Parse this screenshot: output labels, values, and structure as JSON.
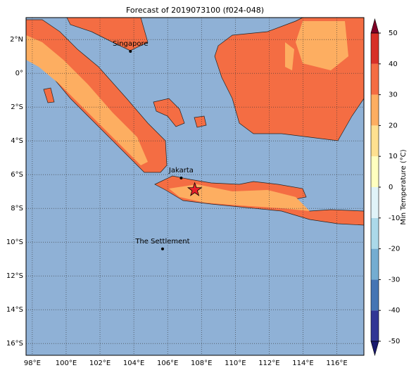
{
  "title": "Forecast of 2019073100 (f024-048)",
  "map": {
    "lonlim": [
      97.63,
      117.6
    ],
    "latlim": [
      -16.7,
      3.3
    ],
    "xticks": [
      {
        "value": 98,
        "label": "98°E"
      },
      {
        "value": 100,
        "label": "100°E"
      },
      {
        "value": 102,
        "label": "102°E"
      },
      {
        "value": 104,
        "label": "104°E"
      },
      {
        "value": 106,
        "label": "106°E"
      },
      {
        "value": 108,
        "label": "108°E"
      },
      {
        "value": 110,
        "label": "110°E"
      },
      {
        "value": 112,
        "label": "112°E"
      },
      {
        "value": 114,
        "label": "114°E"
      },
      {
        "value": 116,
        "label": "116°E"
      }
    ],
    "yticks": [
      {
        "value": 2,
        "label": "2°N"
      },
      {
        "value": 0,
        "label": "0°"
      },
      {
        "value": -2,
        "label": "2°S"
      },
      {
        "value": -4,
        "label": "4°S"
      },
      {
        "value": -6,
        "label": "6°S"
      },
      {
        "value": -8,
        "label": "8°S"
      },
      {
        "value": -10,
        "label": "10°S"
      },
      {
        "value": -12,
        "label": "12°S"
      },
      {
        "value": -14,
        "label": "14°S"
      },
      {
        "value": -16,
        "label": "16°S"
      }
    ],
    "places": [
      {
        "name": "Singapore",
        "lon": 103.8,
        "lat": 1.3
      },
      {
        "name": "Jakarta",
        "lon": 106.8,
        "lat": -6.2
      },
      {
        "name": "The Settlement",
        "lon": 105.7,
        "lat": -10.4
      }
    ],
    "star": {
      "lon": 107.6,
      "lat": -6.9
    }
  },
  "colorbar": {
    "label": "Min Temperature (°C)",
    "ticks": [
      -50,
      -40,
      -30,
      -20,
      -10,
      0,
      10,
      20,
      30,
      40,
      50
    ],
    "colors": [
      "#313695",
      "#4575b4",
      "#74add1",
      "#abd9e9",
      "#e0f3f8",
      "#ffffbf",
      "#fee090",
      "#fdae61",
      "#f46d43",
      "#d73027"
    ],
    "under": "#1a1a6e",
    "over": "#800026"
  }
}
